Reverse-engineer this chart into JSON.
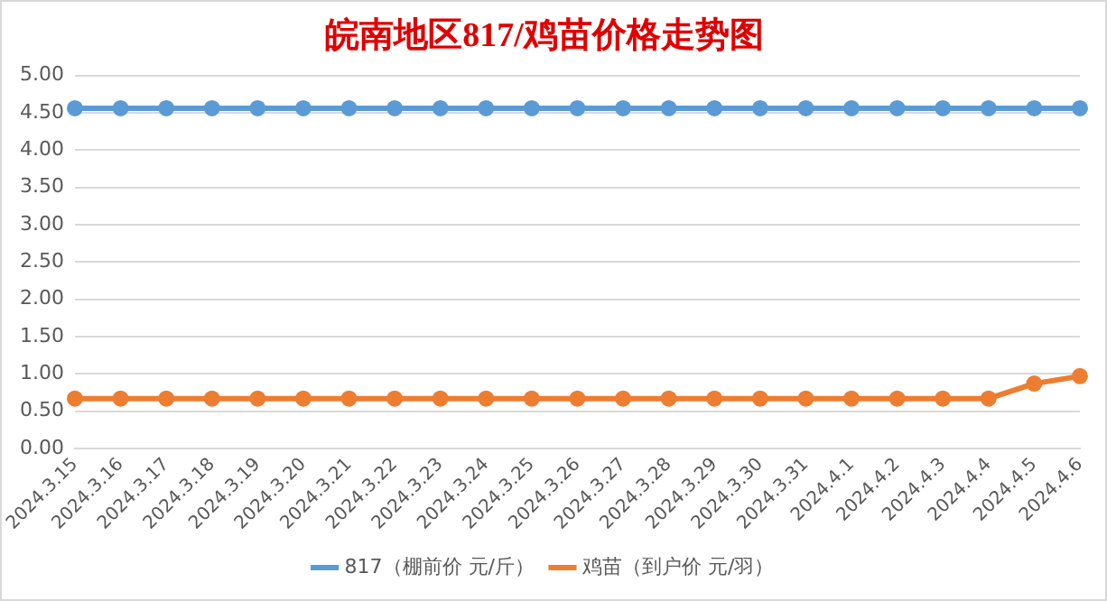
{
  "chart_data": {
    "type": "line",
    "title": "皖南地区817/鸡苗价格走势图",
    "categories": [
      "2024.3.15",
      "2024.3.16",
      "2024.3.17",
      "2024.3.18",
      "2024.3.19",
      "2024.3.20",
      "2024.3.21",
      "2024.3.22",
      "2024.3.23",
      "2024.3.24",
      "2024.3.25",
      "2024.3.26",
      "2024.3.27",
      "2024.3.28",
      "2024.3.29",
      "2024.3.30",
      "2024.3.31",
      "2024.4.1",
      "2024.4.2",
      "2024.4.3",
      "2024.4.4",
      "2024.4.5",
      "2024.4.6"
    ],
    "series": [
      {
        "name": "817（棚前价 元/斤）",
        "color": "#5b9bd5",
        "values": [
          4.56,
          4.56,
          4.56,
          4.56,
          4.56,
          4.56,
          4.56,
          4.56,
          4.56,
          4.56,
          4.56,
          4.56,
          4.56,
          4.56,
          4.56,
          4.56,
          4.56,
          4.56,
          4.56,
          4.56,
          4.56,
          4.56,
          4.56
        ]
      },
      {
        "name": "鸡苗（到户价 元/羽）",
        "color": "#ed7d31",
        "values": [
          0.67,
          0.67,
          0.67,
          0.67,
          0.67,
          0.67,
          0.67,
          0.67,
          0.67,
          0.67,
          0.67,
          0.67,
          0.67,
          0.67,
          0.67,
          0.67,
          0.67,
          0.67,
          0.67,
          0.67,
          0.67,
          0.87,
          0.97
        ]
      }
    ],
    "ylim": [
      0,
      5
    ],
    "yticks": [
      {
        "value": 0,
        "label": "0.00"
      },
      {
        "value": 0.5,
        "label": "0.50"
      },
      {
        "value": 1,
        "label": "1.00"
      },
      {
        "value": 1.5,
        "label": "1.50"
      },
      {
        "value": 2,
        "label": "2.00"
      },
      {
        "value": 2.5,
        "label": "2.50"
      },
      {
        "value": 3,
        "label": "3.00"
      },
      {
        "value": 3.5,
        "label": "3.50"
      },
      {
        "value": 4,
        "label": "4.00"
      },
      {
        "value": 4.5,
        "label": "4.50"
      },
      {
        "value": 5,
        "label": "5.00"
      }
    ],
    "grid": "y",
    "legend": "bottom",
    "marker": "circle",
    "line_style": "solid"
  }
}
